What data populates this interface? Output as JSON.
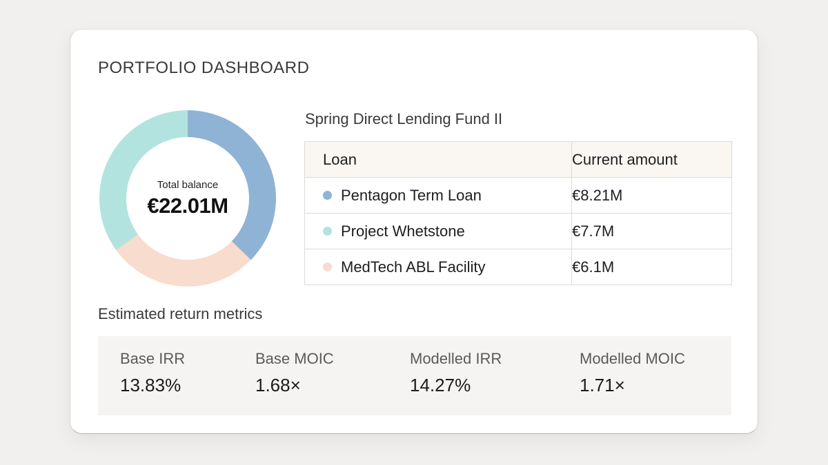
{
  "dashboard": {
    "title": "PORTFOLIO DASHBOARD"
  },
  "balance": {
    "label": "Total balance",
    "value": "€22.01M"
  },
  "fund": {
    "name": "Spring Direct Lending Fund II",
    "table": {
      "headers": [
        "Loan",
        "Current amount"
      ],
      "rows": [
        {
          "name": "Pentagon Term Loan",
          "amount": "€8.21M",
          "value": 8.21,
          "color": "#8fb3d4"
        },
        {
          "name": "Project Whetstone",
          "amount": "€7.7M",
          "value": 7.7,
          "color": "#b3e3df"
        },
        {
          "name": "MedTech ABL Facility",
          "amount": "€6.1M",
          "value": 6.1,
          "color": "#f8dccd"
        }
      ]
    }
  },
  "metrics": {
    "title": "Estimated return metrics",
    "items": [
      {
        "label": "Base IRR",
        "value": "13.83%"
      },
      {
        "label": "Base MOIC",
        "value": "1.68×"
      },
      {
        "label": "Modelled IRR",
        "value": "14.27%"
      },
      {
        "label": "Modelled MOIC",
        "value": "1.71×"
      }
    ]
  }
}
